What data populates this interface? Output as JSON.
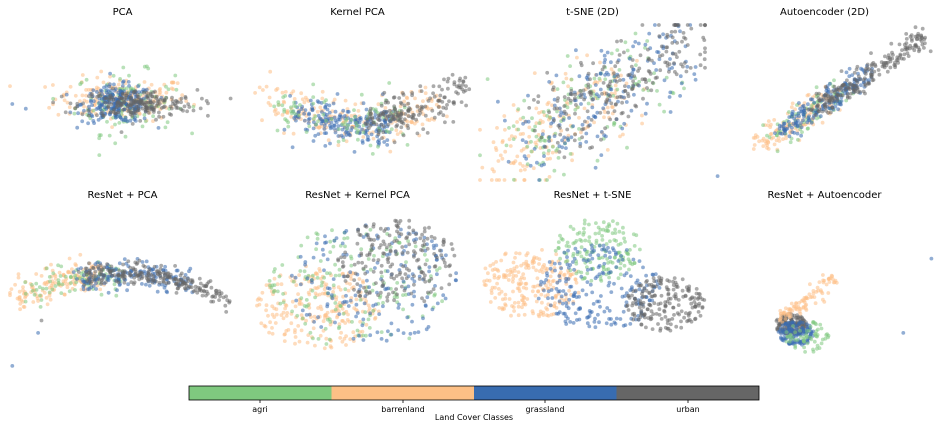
{
  "chart_data": {
    "type": "scatter",
    "figure_description": "2x4 grid of 2D embedding scatter plots colored by land cover class, with a shared categorical colorbar",
    "panels": [
      {
        "title": "PCA",
        "clusters": [
          {
            "cls": "barrenland",
            "cx": 0.0,
            "cy": 0.05,
            "sx": 0.3,
            "sy": 0.14,
            "n": 180
          },
          {
            "cls": "agri",
            "cx": 0.02,
            "cy": 0.0,
            "sx": 0.22,
            "sy": 0.2,
            "n": 110
          },
          {
            "cls": "grassland",
            "cx": -0.04,
            "cy": -0.02,
            "sx": 0.16,
            "sy": 0.12,
            "n": 220
          },
          {
            "cls": "urban",
            "cx": 0.14,
            "cy": -0.02,
            "sx": 0.26,
            "sy": 0.09,
            "n": 210
          }
        ],
        "outliers": [
          {
            "cls": "grassland",
            "x": -0.98,
            "y": -0.02
          },
          {
            "cls": "grassland",
            "x": -0.86,
            "y": -0.08
          }
        ]
      },
      {
        "title": "Kernel PCA",
        "clusters": [
          {
            "cls": "barrenland",
            "arc": true,
            "from": -0.85,
            "to": 0.7,
            "depth": 0.55,
            "w": 0.15,
            "n": 200
          },
          {
            "cls": "grassland",
            "arc": true,
            "from": -0.55,
            "to": 0.3,
            "depth": 0.6,
            "w": 0.12,
            "n": 200
          },
          {
            "cls": "agri",
            "arc": true,
            "from": -0.7,
            "to": 0.4,
            "depth": 0.55,
            "w": 0.16,
            "n": 90
          },
          {
            "cls": "urban",
            "arc": true,
            "from": 0.1,
            "to": 0.95,
            "depth": 0.5,
            "w": 0.13,
            "n": 170
          }
        ],
        "outliers": []
      },
      {
        "title": "t-SNE (2D)",
        "clusters": [
          {
            "cls": "barrenland",
            "diag": true,
            "from": -0.85,
            "to": 0.3,
            "w": 0.28,
            "n": 170
          },
          {
            "cls": "agri",
            "diag": true,
            "from": -0.7,
            "to": 0.6,
            "w": 0.32,
            "n": 130
          },
          {
            "cls": "grassland",
            "diag": true,
            "from": -0.55,
            "to": 0.8,
            "w": 0.3,
            "n": 170
          },
          {
            "cls": "urban",
            "diag": true,
            "from": -0.4,
            "to": 0.95,
            "w": 0.26,
            "n": 200
          }
        ],
        "outliers": []
      },
      {
        "title": "Autoencoder (2D)",
        "clusters": [
          {
            "cls": "barrenland",
            "diag": true,
            "from": -0.6,
            "to": 0.1,
            "w": 0.1,
            "n": 120
          },
          {
            "cls": "agri",
            "diag": true,
            "from": -0.45,
            "to": 0.2,
            "w": 0.1,
            "n": 70
          },
          {
            "cls": "grassland",
            "diag": true,
            "from": -0.4,
            "to": 0.4,
            "w": 0.08,
            "n": 180
          },
          {
            "cls": "urban",
            "diag": true,
            "from": -0.1,
            "to": 0.9,
            "w": 0.07,
            "n": 220
          }
        ],
        "outliers": [
          {
            "cls": "grassland",
            "x": -0.95,
            "y": -0.95
          }
        ]
      },
      {
        "title": "ResNet + PCA",
        "clusters": [
          {
            "cls": "barrenland",
            "arc": true,
            "from": -0.95,
            "to": -0.2,
            "depth": -0.3,
            "w": 0.1,
            "n": 150
          },
          {
            "cls": "agri",
            "arc": true,
            "from": -0.85,
            "to": 0.0,
            "depth": -0.3,
            "w": 0.09,
            "n": 80
          },
          {
            "cls": "grassland",
            "arc": true,
            "from": -0.45,
            "to": 0.6,
            "depth": -0.3,
            "w": 0.08,
            "n": 160
          },
          {
            "cls": "urban",
            "arc": true,
            "from": -0.35,
            "to": 0.95,
            "depth": -0.35,
            "w": 0.06,
            "n": 230
          }
        ],
        "outliers": [
          {
            "cls": "grassland",
            "x": -0.98,
            "y": -0.95
          },
          {
            "cls": "grassland",
            "x": -0.75,
            "y": -0.55
          },
          {
            "cls": "urban",
            "x": -0.72,
            "y": -0.4
          }
        ]
      },
      {
        "title": "ResNet + Kernel PCA",
        "clusters": [
          {
            "cls": "barrenland",
            "blob": true,
            "cx": -0.35,
            "cy": -0.25,
            "r": 0.55,
            "n": 230
          },
          {
            "cls": "agri",
            "blob": true,
            "cx": 0.0,
            "cy": 0.0,
            "r": 0.8,
            "n": 160
          },
          {
            "cls": "grassland",
            "blob": true,
            "cx": 0.15,
            "cy": 0.05,
            "r": 0.75,
            "n": 170
          },
          {
            "cls": "urban",
            "blob": true,
            "cx": 0.35,
            "cy": 0.3,
            "r": 0.55,
            "n": 190
          }
        ],
        "outliers": []
      },
      {
        "title": "ResNet + t-SNE",
        "clusters": [
          {
            "cls": "barrenland",
            "blob": true,
            "cx": -0.55,
            "cy": 0.05,
            "r": 0.45,
            "n": 220
          },
          {
            "cls": "agri",
            "blob": true,
            "cx": 0.05,
            "cy": 0.45,
            "r": 0.4,
            "n": 150
          },
          {
            "cls": "grassland",
            "blob": true,
            "cx": 0.05,
            "cy": 0.0,
            "r": 0.55,
            "n": 210
          },
          {
            "cls": "urban",
            "blob": true,
            "cx": 0.65,
            "cy": -0.2,
            "r": 0.35,
            "n": 190
          }
        ],
        "outliers": []
      },
      {
        "title": "ResNet + Autoencoder",
        "clusters": [
          {
            "cls": "urban",
            "blob": true,
            "cx": -0.3,
            "cy": -0.45,
            "r": 0.14,
            "n": 150
          },
          {
            "cls": "barrenland",
            "diag": true,
            "from": -0.4,
            "to": 0.1,
            "w": 0.06,
            "n": 90
          },
          {
            "cls": "grassland",
            "blob": true,
            "cx": -0.25,
            "cy": -0.55,
            "r": 0.16,
            "n": 120
          },
          {
            "cls": "agri",
            "blob": true,
            "cx": -0.15,
            "cy": -0.6,
            "r": 0.2,
            "n": 60
          }
        ],
        "outliers": [
          {
            "cls": "grassland",
            "x": 0.95,
            "y": 0.35
          },
          {
            "cls": "grassland",
            "x": 0.7,
            "y": -0.55
          }
        ]
      }
    ],
    "colorbar": {
      "title": "Land Cover Classes",
      "classes": [
        {
          "name": "agri",
          "color": "#7fc97f"
        },
        {
          "name": "barrenland",
          "color": "#fdc086"
        },
        {
          "name": "grassland",
          "color": "#386cb0"
        },
        {
          "name": "urban",
          "color": "#666666"
        }
      ]
    },
    "marker_alpha": 0.55
  }
}
